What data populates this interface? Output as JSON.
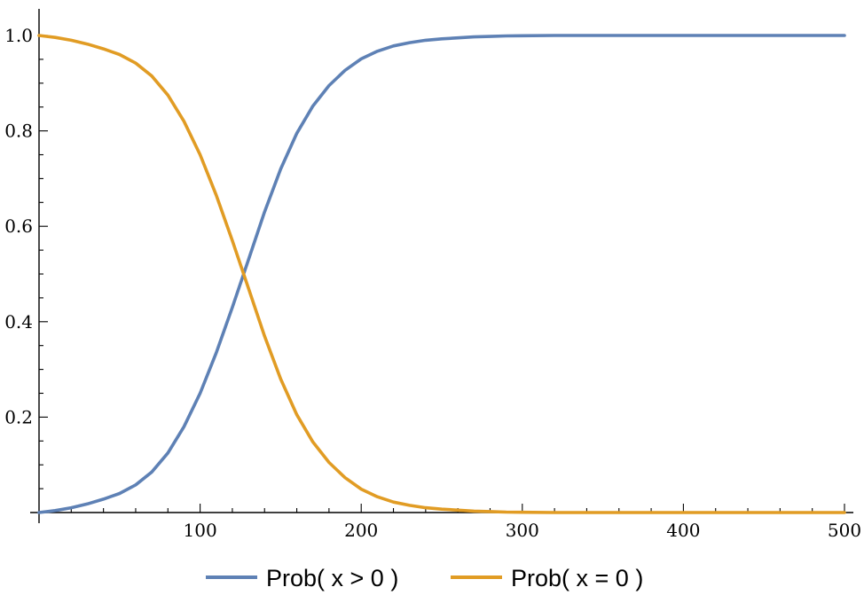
{
  "chart_data": {
    "type": "line",
    "title": "",
    "xlabel": "",
    "ylabel": "",
    "xlim": [
      0,
      500
    ],
    "ylim": [
      0,
      1.05
    ],
    "x_ticks": [
      100,
      200,
      300,
      400,
      500
    ],
    "x_tick_labels": [
      "100",
      "200",
      "300",
      "400",
      "500"
    ],
    "x_minor_step": 20,
    "y_ticks": [
      0.2,
      0.4,
      0.6,
      0.8,
      1.0
    ],
    "y_tick_labels": [
      "0.2",
      "0.4",
      "0.6",
      "0.8",
      "1.0"
    ],
    "y_minor_step": 0.05,
    "grid": false,
    "legend_position": "bottom-center",
    "x": [
      0,
      10,
      20,
      30,
      40,
      50,
      60,
      70,
      80,
      90,
      100,
      110,
      120,
      130,
      140,
      150,
      160,
      170,
      180,
      190,
      200,
      210,
      220,
      230,
      240,
      250,
      260,
      270,
      280,
      290,
      300,
      320,
      340,
      360,
      380,
      400,
      420,
      440,
      460,
      480,
      500
    ],
    "series": [
      {
        "name": "Prob( x > 0 )",
        "color": "#5E81B5",
        "values": [
          0.0,
          0.004,
          0.01,
          0.018,
          0.028,
          0.04,
          0.058,
          0.085,
          0.125,
          0.18,
          0.25,
          0.335,
          0.43,
          0.53,
          0.63,
          0.72,
          0.795,
          0.852,
          0.895,
          0.927,
          0.951,
          0.967,
          0.978,
          0.985,
          0.99,
          0.993,
          0.995,
          0.997,
          0.998,
          0.999,
          0.9995,
          1.0,
          1.0,
          1.0,
          1.0,
          1.0,
          1.0,
          1.0,
          1.0,
          1.0,
          1.0
        ]
      },
      {
        "name": "Prob( x = 0 )",
        "color": "#E19C24",
        "values": [
          1.0,
          0.996,
          0.99,
          0.982,
          0.972,
          0.96,
          0.942,
          0.915,
          0.875,
          0.82,
          0.75,
          0.665,
          0.57,
          0.47,
          0.37,
          0.28,
          0.205,
          0.148,
          0.105,
          0.073,
          0.049,
          0.033,
          0.022,
          0.015,
          0.01,
          0.007,
          0.005,
          0.003,
          0.002,
          0.001,
          0.0005,
          0.0,
          0.0,
          0.0,
          0.0,
          0.0,
          0.0,
          0.0,
          0.0,
          0.0,
          0.0
        ]
      }
    ]
  }
}
